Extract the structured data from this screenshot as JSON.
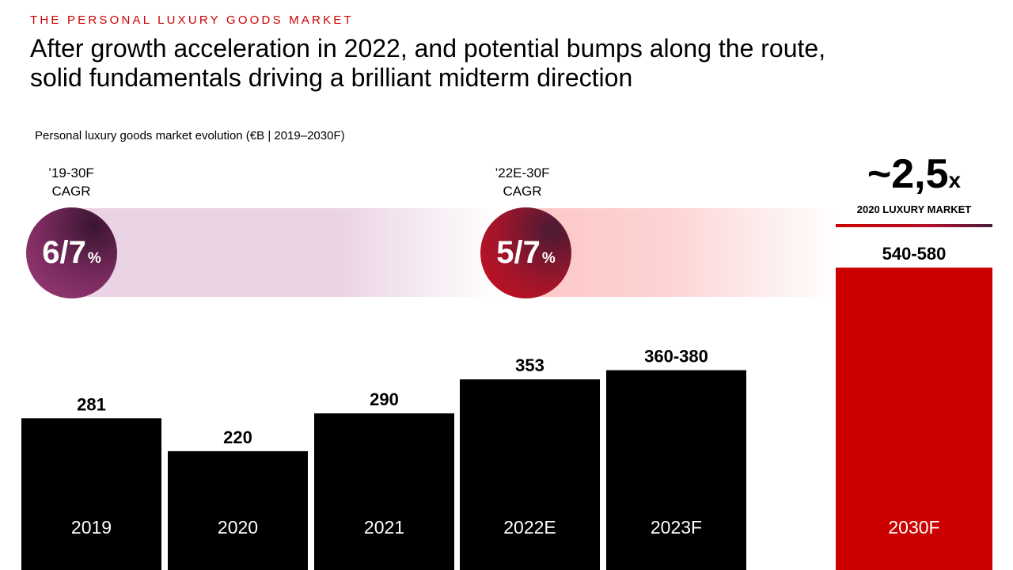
{
  "kicker": "THE PERSONAL LUXURY GOODS MARKET",
  "title_line1": "After growth acceleration in 2022, and potential bumps along the route,",
  "title_line2": "solid fundamentals driving a brilliant midterm direction",
  "cagr_1": {
    "line1": "’19-30F",
    "line2": "CAGR",
    "value": "6/7",
    "unit": "%"
  },
  "cagr_2": {
    "line1": "’22E-30F",
    "line2": "CAGR",
    "value": "5/7",
    "unit": "%"
  },
  "multiplier": {
    "value": "~2,5",
    "suffix": "x",
    "caption": "2020 LUXURY MARKET"
  },
  "colors": {
    "bar": "#000000",
    "highlight": "#cc0000",
    "accent_red": "#cc0000",
    "accent_purple": "#7b2b60"
  },
  "chart_data": {
    "type": "bar",
    "title": "Personal luxury goods market evolution (€B | 2019–2030F)",
    "xlabel": "",
    "ylabel": "€B",
    "categories": [
      "2019",
      "2020",
      "2021",
      "2022E",
      "2023F",
      "2030F"
    ],
    "values": [
      281,
      220,
      290,
      353,
      370,
      560
    ],
    "value_labels": [
      "281",
      "220",
      "290",
      "353",
      "360-380",
      "540-580"
    ],
    "highlight": [
      "2030F"
    ],
    "ylim": [
      0,
      560
    ]
  }
}
